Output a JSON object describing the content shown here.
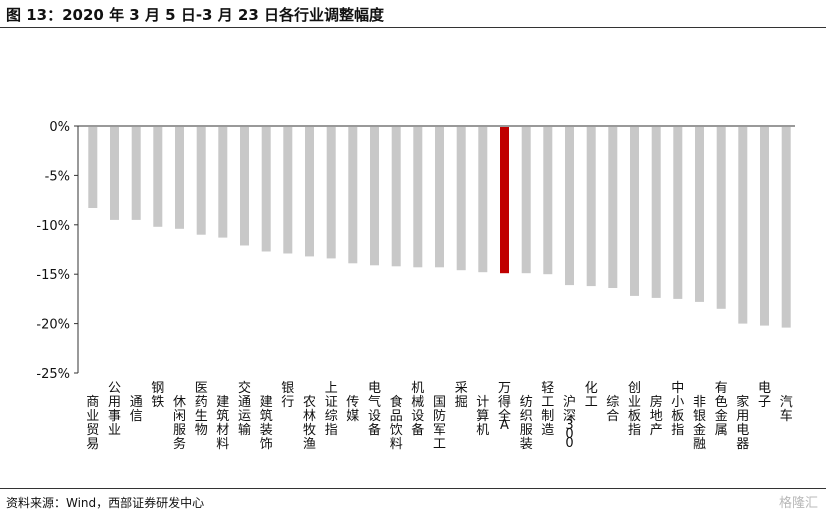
{
  "title": "图 13：2020 年 3 月 5 日-3 月 23 日各行业调整幅度",
  "source": "资料来源：Wind，西部证券研发中心",
  "watermark": "格隆汇",
  "colors": {
    "bar": "#c8c8c8",
    "highlight": "#c00000",
    "axis": "#333333"
  },
  "chart_data": {
    "type": "bar",
    "title": "",
    "xlabel": "",
    "ylabel": "",
    "ylim": [
      -25,
      0
    ],
    "y_ticks": [
      "0%",
      "-5%",
      "-10%",
      "-15%",
      "-20%",
      "-25%"
    ],
    "grid": false,
    "highlight_category": "万得全A",
    "categories": [
      "商业贸易",
      "公用事业",
      "通信",
      "钢铁",
      "休闲服务",
      "医药生物",
      "建筑材料",
      "交通运输",
      "建筑装饰",
      "银行",
      "农林牧渔",
      "上证综指",
      "传媒",
      "电气设备",
      "食品饮料",
      "机械设备",
      "国防军工",
      "采掘",
      "计算机",
      "万得全A",
      "纺织服装",
      "轻工制造",
      "沪深300",
      "化工",
      "综合",
      "创业板指",
      "房地产",
      "中小板指",
      "非银金融",
      "有色金属",
      "家用电器",
      "电子",
      "汽车"
    ],
    "values": [
      -8.3,
      -9.5,
      -9.5,
      -10.2,
      -10.4,
      -11.0,
      -11.3,
      -12.1,
      -12.7,
      -12.9,
      -13.2,
      -13.4,
      -13.9,
      -14.1,
      -14.2,
      -14.3,
      -14.3,
      -14.6,
      -14.8,
      -14.9,
      -14.9,
      -15.0,
      -16.1,
      -16.2,
      -16.4,
      -17.2,
      -17.4,
      -17.5,
      -17.8,
      -18.5,
      -20.0,
      -20.2,
      -20.4
    ]
  }
}
